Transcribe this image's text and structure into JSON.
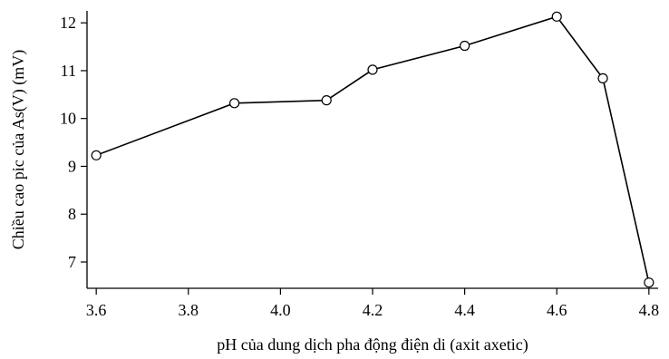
{
  "chart_data": {
    "type": "line",
    "title": "",
    "xlabel": "pH của dung dịch pha động điện di (axit axetic)",
    "ylabel": "Chiều cao pic của As(V) (mV)",
    "xlim": [
      3.58,
      4.82
    ],
    "ylim": [
      6.45,
      12.25
    ],
    "xticks": [
      3.6,
      3.8,
      4.0,
      4.2,
      4.4,
      4.6,
      4.8
    ],
    "xtick_labels": [
      "3.6",
      "3.8",
      "4.0",
      "4.2",
      "4.4",
      "4.6",
      "4.8"
    ],
    "yticks": [
      7,
      8,
      9,
      10,
      11,
      12
    ],
    "ytick_labels": [
      "7",
      "8",
      "9",
      "10",
      "11",
      "12"
    ],
    "grid": false,
    "legend": "none",
    "marker": "open-circle",
    "series": [
      {
        "x": [
          3.6,
          3.9,
          4.1,
          4.2,
          4.4,
          4.6,
          4.7,
          4.8
        ],
        "y": [
          9.23,
          10.32,
          10.38,
          11.02,
          11.52,
          12.13,
          10.84,
          6.57
        ]
      }
    ]
  }
}
